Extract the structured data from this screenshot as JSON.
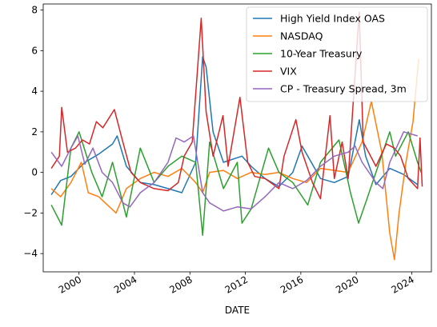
{
  "chart_data": {
    "type": "line",
    "title": "",
    "xlabel": "DATE",
    "ylabel": "",
    "x_domain": [
      "1997-06-01",
      "2025-06-01"
    ],
    "ylim": [
      -4.9,
      8.3
    ],
    "x_ticks": [
      {
        "date": "1999-12-31",
        "label": "2000"
      },
      {
        "date": "2003-12-31",
        "label": "2004"
      },
      {
        "date": "2007-12-31",
        "label": "2008"
      },
      {
        "date": "2011-12-31",
        "label": "2012"
      },
      {
        "date": "2015-12-31",
        "label": "2016"
      },
      {
        "date": "2019-12-31",
        "label": "2020"
      },
      {
        "date": "2023-12-31",
        "label": "2024"
      }
    ],
    "y_ticks": [
      {
        "value": -4,
        "label": "−4"
      },
      {
        "value": -2,
        "label": "−2"
      },
      {
        "value": 0,
        "label": "0"
      },
      {
        "value": 2,
        "label": "2"
      },
      {
        "value": 4,
        "label": "4"
      },
      {
        "value": 6,
        "label": "6"
      },
      {
        "value": 8,
        "label": "8"
      }
    ],
    "grid": false,
    "legend_position": "top-right",
    "series": [
      {
        "name": "High Yield Index OAS",
        "color": "#1f77b4",
        "points": [
          [
            "1998-01-01",
            -1.1
          ],
          [
            "1998-09-01",
            -0.4
          ],
          [
            "1999-06-01",
            -0.2
          ],
          [
            "2000-06-01",
            0.5
          ],
          [
            "2001-06-01",
            0.9
          ],
          [
            "2002-06-01",
            1.4
          ],
          [
            "2002-10-01",
            1.8
          ],
          [
            "2003-06-01",
            0.3
          ],
          [
            "2004-06-01",
            -0.5
          ],
          [
            "2005-06-01",
            -0.6
          ],
          [
            "2006-06-01",
            -0.8
          ],
          [
            "2007-06-01",
            -1.0
          ],
          [
            "2008-06-01",
            0.5
          ],
          [
            "2008-12-01",
            5.7
          ],
          [
            "2009-03-01",
            5.2
          ],
          [
            "2009-09-01",
            2.0
          ],
          [
            "2010-06-01",
            0.5
          ],
          [
            "2011-10-01",
            0.8
          ],
          [
            "2012-06-01",
            0.3
          ],
          [
            "2013-06-01",
            -0.3
          ],
          [
            "2014-06-01",
            -0.7
          ],
          [
            "2015-06-01",
            0.0
          ],
          [
            "2016-02-01",
            1.3
          ],
          [
            "2017-06-01",
            -0.3
          ],
          [
            "2018-06-01",
            -0.5
          ],
          [
            "2019-06-01",
            -0.2
          ],
          [
            "2020-03-20",
            2.6
          ],
          [
            "2020-09-01",
            0.8
          ],
          [
            "2021-06-01",
            -0.6
          ],
          [
            "2022-06-01",
            0.2
          ],
          [
            "2023-06-01",
            -0.1
          ],
          [
            "2024-06-01",
            -0.6
          ]
        ]
      },
      {
        "name": "NASDAQ",
        "color": "#ff7f0e",
        "points": [
          [
            "1998-01-01",
            -0.8
          ],
          [
            "1998-09-01",
            -1.2
          ],
          [
            "1999-06-01",
            -0.5
          ],
          [
            "2000-03-01",
            0.5
          ],
          [
            "2000-09-01",
            -1.0
          ],
          [
            "2001-06-01",
            -1.2
          ],
          [
            "2002-09-01",
            -2.0
          ],
          [
            "2003-06-01",
            -0.8
          ],
          [
            "2004-06-01",
            -0.3
          ],
          [
            "2005-06-01",
            0.0
          ],
          [
            "2006-06-01",
            -0.2
          ],
          [
            "2007-06-01",
            0.2
          ],
          [
            "2008-06-01",
            -0.5
          ],
          [
            "2008-12-01",
            -1.0
          ],
          [
            "2009-06-01",
            0.0
          ],
          [
            "2010-06-01",
            0.1
          ],
          [
            "2011-06-01",
            -0.3
          ],
          [
            "2012-06-01",
            0.0
          ],
          [
            "2013-06-01",
            -0.1
          ],
          [
            "2014-06-01",
            0.0
          ],
          [
            "2015-06-01",
            -0.3
          ],
          [
            "2016-06-01",
            -0.5
          ],
          [
            "2017-06-01",
            0.2
          ],
          [
            "2018-06-01",
            0.1
          ],
          [
            "2019-06-01",
            0.0
          ],
          [
            "2020-06-01",
            1.5
          ],
          [
            "2021-02-01",
            3.5
          ],
          [
            "2021-11-01",
            1.0
          ],
          [
            "2022-06-01",
            -3.0
          ],
          [
            "2022-10-01",
            -4.3
          ],
          [
            "2023-02-01",
            -2.0
          ],
          [
            "2023-08-01",
            0.5
          ],
          [
            "2024-02-01",
            2.5
          ],
          [
            "2024-07-01",
            5.6
          ]
        ]
      },
      {
        "name": "10-Year Treasury",
        "color": "#2ca02c",
        "points": [
          [
            "1998-01-01",
            -1.6
          ],
          [
            "1998-10-01",
            -2.6
          ],
          [
            "1999-06-01",
            1.2
          ],
          [
            "2000-01-01",
            2.0
          ],
          [
            "2000-12-01",
            0.0
          ],
          [
            "2001-09-01",
            -1.2
          ],
          [
            "2002-06-01",
            0.5
          ],
          [
            "2003-06-01",
            -2.2
          ],
          [
            "2004-06-01",
            1.2
          ],
          [
            "2005-06-01",
            -0.5
          ],
          [
            "2006-06-01",
            0.3
          ],
          [
            "2007-06-01",
            0.8
          ],
          [
            "2008-06-01",
            0.5
          ],
          [
            "2008-12-01",
            -3.1
          ],
          [
            "2009-06-01",
            1.5
          ],
          [
            "2010-06-01",
            -0.8
          ],
          [
            "2011-06-01",
            0.5
          ],
          [
            "2011-10-01",
            -2.5
          ],
          [
            "2012-06-01",
            -1.8
          ],
          [
            "2013-09-01",
            1.2
          ],
          [
            "2014-06-01",
            0.0
          ],
          [
            "2015-06-01",
            -0.5
          ],
          [
            "2016-07-01",
            -1.6
          ],
          [
            "2017-06-01",
            0.5
          ],
          [
            "2018-10-01",
            1.6
          ],
          [
            "2019-08-01",
            -1.0
          ],
          [
            "2020-03-01",
            -2.5
          ],
          [
            "2020-09-01",
            -1.5
          ],
          [
            "2021-06-01",
            0.0
          ],
          [
            "2022-06-01",
            2.0
          ],
          [
            "2022-11-01",
            0.8
          ],
          [
            "2023-10-01",
            2.0
          ],
          [
            "2024-06-01",
            0.5
          ],
          [
            "2024-09-01",
            0.0
          ]
        ]
      },
      {
        "name": "VIX",
        "color": "#d62728",
        "points": [
          [
            "1998-01-01",
            0.2
          ],
          [
            "1998-08-01",
            0.8
          ],
          [
            "1998-10-01",
            3.2
          ],
          [
            "1999-03-01",
            1.0
          ],
          [
            "1999-10-01",
            1.2
          ],
          [
            "2000-04-01",
            1.6
          ],
          [
            "2000-10-01",
            1.4
          ],
          [
            "2001-04-01",
            2.5
          ],
          [
            "2001-09-20",
            2.2
          ],
          [
            "2002-07-20",
            3.1
          ],
          [
            "2003-03-01",
            1.5
          ],
          [
            "2003-10-01",
            0.0
          ],
          [
            "2004-06-01",
            -0.5
          ],
          [
            "2005-06-01",
            -0.8
          ],
          [
            "2006-06-01",
            -0.9
          ],
          [
            "2007-03-01",
            -0.5
          ],
          [
            "2007-08-01",
            0.8
          ],
          [
            "2008-03-01",
            1.5
          ],
          [
            "2008-10-24",
            7.6
          ],
          [
            "2009-03-01",
            3.0
          ],
          [
            "2009-09-01",
            0.8
          ],
          [
            "2010-05-20",
            2.8
          ],
          [
            "2010-10-01",
            0.3
          ],
          [
            "2011-08-10",
            3.7
          ],
          [
            "2012-03-01",
            0.5
          ],
          [
            "2012-09-01",
            -0.2
          ],
          [
            "2013-06-01",
            -0.3
          ],
          [
            "2014-06-01",
            -0.8
          ],
          [
            "2014-10-15",
            0.8
          ],
          [
            "2015-08-24",
            2.6
          ],
          [
            "2016-02-01",
            1.0
          ],
          [
            "2016-11-01",
            -0.5
          ],
          [
            "2017-06-01",
            -1.3
          ],
          [
            "2018-02-06",
            2.8
          ],
          [
            "2018-06-01",
            -0.3
          ],
          [
            "2018-12-24",
            1.5
          ],
          [
            "2019-06-01",
            -0.3
          ],
          [
            "2020-03-16",
            7.9
          ],
          [
            "2020-07-01",
            1.5
          ],
          [
            "2021-06-01",
            0.3
          ],
          [
            "2022-03-01",
            1.4
          ],
          [
            "2022-10-01",
            1.2
          ],
          [
            "2023-03-13",
            0.8
          ],
          [
            "2023-10-01",
            -0.3
          ],
          [
            "2024-06-01",
            -0.8
          ],
          [
            "2024-08-05",
            1.7
          ],
          [
            "2024-10-01",
            -0.7
          ]
        ]
      },
      {
        "name": "CP - Treasury Spread, 3m",
        "color": "#9467bd",
        "points": [
          [
            "1998-01-01",
            1.0
          ],
          [
            "1998-10-01",
            0.3
          ],
          [
            "1999-06-01",
            1.2
          ],
          [
            "1999-12-01",
            1.8
          ],
          [
            "2000-06-01",
            0.4
          ],
          [
            "2001-01-01",
            1.2
          ],
          [
            "2001-09-01",
            0.0
          ],
          [
            "2002-06-01",
            -0.5
          ],
          [
            "2003-03-01",
            -1.5
          ],
          [
            "2003-09-01",
            -1.7
          ],
          [
            "2004-06-01",
            -1.0
          ],
          [
            "2005-06-01",
            -0.5
          ],
          [
            "2006-06-01",
            0.5
          ],
          [
            "2007-01-01",
            1.7
          ],
          [
            "2007-08-01",
            1.5
          ],
          [
            "2008-04-01",
            1.8
          ],
          [
            "2008-12-01",
            -1.0
          ],
          [
            "2009-06-01",
            -1.5
          ],
          [
            "2010-06-01",
            -1.9
          ],
          [
            "2011-06-01",
            -1.7
          ],
          [
            "2012-06-01",
            -1.8
          ],
          [
            "2013-06-01",
            -1.2
          ],
          [
            "2014-06-01",
            -0.5
          ],
          [
            "2015-06-01",
            -0.8
          ],
          [
            "2016-06-01",
            -0.4
          ],
          [
            "2017-06-01",
            0.3
          ],
          [
            "2018-06-01",
            0.8
          ],
          [
            "2019-06-01",
            1.0
          ],
          [
            "2019-12-01",
            1.3
          ],
          [
            "2020-06-01",
            0.5
          ],
          [
            "2021-06-01",
            -0.5
          ],
          [
            "2021-12-01",
            -0.8
          ],
          [
            "2022-06-01",
            0.5
          ],
          [
            "2023-06-01",
            2.0
          ],
          [
            "2024-06-01",
            1.8
          ]
        ]
      }
    ]
  }
}
